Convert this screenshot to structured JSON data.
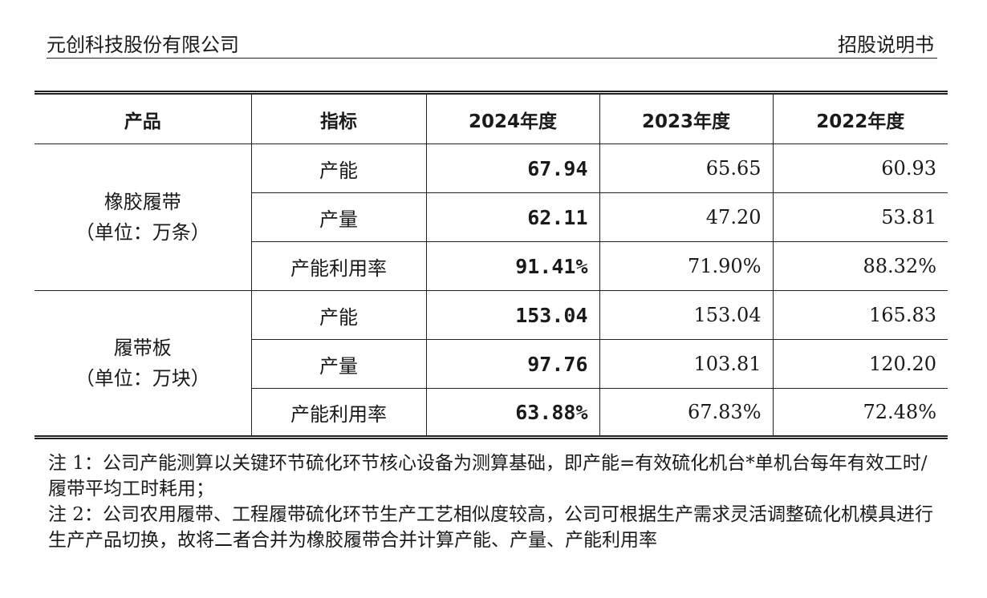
{
  "header": {
    "company": "元创科技股份有限公司",
    "doc_type": "招股说明书"
  },
  "table": {
    "columns": [
      "产品",
      "指标",
      "2024年度",
      "2023年度",
      "2022年度"
    ],
    "groups": [
      {
        "product": "橡胶履带",
        "unit": "（单位：万条）",
        "rows": [
          {
            "metric": "产能",
            "v2024": "67.94",
            "v2023": "65.65",
            "v2022": "60.93"
          },
          {
            "metric": "产量",
            "v2024": "62.11",
            "v2023": "47.20",
            "v2022": "53.81"
          },
          {
            "metric": "产能利用率",
            "v2024": "91.41%",
            "v2023": "71.90%",
            "v2022": "88.32%"
          }
        ]
      },
      {
        "product": "履带板",
        "unit": "（单位：万块）",
        "rows": [
          {
            "metric": "产能",
            "v2024": "153.04",
            "v2023": "153.04",
            "v2022": "165.83"
          },
          {
            "metric": "产量",
            "v2024": "97.76",
            "v2023": "103.81",
            "v2022": "120.20"
          },
          {
            "metric": "产能利用率",
            "v2024": "63.88%",
            "v2023": "67.83%",
            "v2022": "72.48%"
          }
        ]
      }
    ]
  },
  "notes": {
    "note1": "注 1：公司产能测算以关键环节硫化环节核心设备为测算基础，即产能=有效硫化机台*单机台每年有效工时/履带平均工时耗用；",
    "note2": "注 2：公司农用履带、工程履带硫化环节生产工艺相似度较高，公司可根据生产需求灵活调整硫化机模具进行生产产品切换，故将二者合并为橡胶履带合并计算产能、产量、产能利用率"
  }
}
